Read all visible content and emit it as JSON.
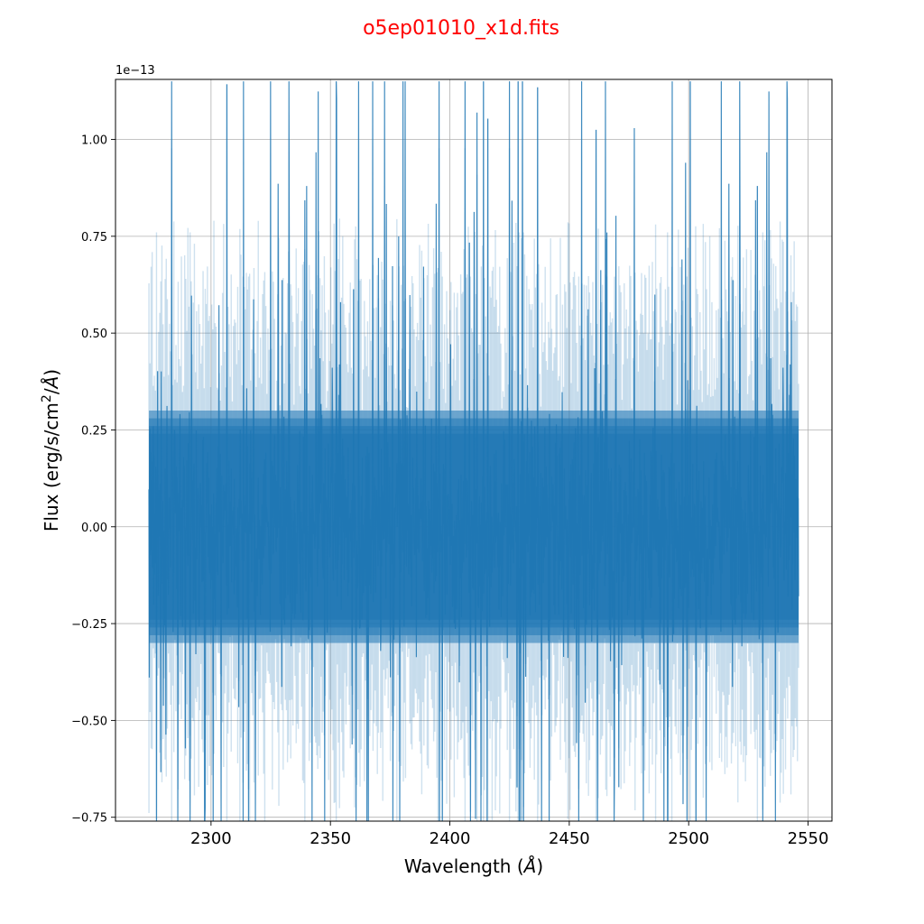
{
  "chart_data": {
    "type": "line",
    "title": "o5ep01010_x1d.fits",
    "xlabel_main": "Wavelength (",
    "xlabel_unit": "Å",
    "xlabel_close": ")",
    "ylabel_main": "Flux (erg/s/cm",
    "ylabel_sup": "2",
    "ylabel_tail": "/",
    "ylabel_unit": "Å",
    "ylabel_close": ")",
    "y_offset_label": "1e−13",
    "y_scale": 1e-13,
    "xlim": [
      2260,
      2560
    ],
    "ylim": [
      -0.76,
      1.155
    ],
    "xticks": [
      2300,
      2350,
      2400,
      2450,
      2500,
      2550
    ],
    "xtick_labels": [
      "2300",
      "2350",
      "2400",
      "2450",
      "2500",
      "2550"
    ],
    "yticks": [
      -0.75,
      -0.5,
      -0.25,
      0.0,
      0.25,
      0.5,
      0.75,
      1.0
    ],
    "ytick_labels": [
      "−0.75",
      "−0.50",
      "−0.25",
      "0.00",
      "0.25",
      "0.50",
      "0.75",
      "1.00"
    ],
    "grid": true,
    "series_color": "#1f77b4",
    "title_color": "#ff0000",
    "series": [
      {
        "x_range": [
          2274,
          2546
        ],
        "flux_core_range": [
          -0.3,
          0.3
        ],
        "flux_typical_range": [
          -0.6,
          0.75
        ],
        "flux_extreme_range": [
          -0.76,
          1.155
        ]
      }
    ]
  }
}
